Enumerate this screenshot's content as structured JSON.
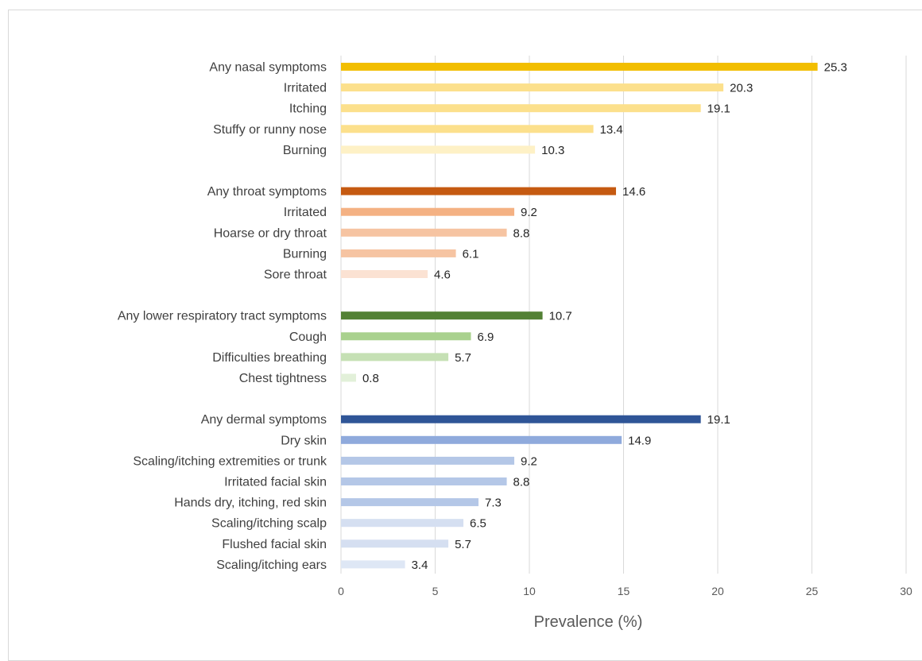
{
  "chart_data": {
    "type": "bar",
    "orientation": "horizontal",
    "title": "",
    "xlabel": "Prevalence (%)",
    "ylabel": "",
    "xlim": [
      0,
      30
    ],
    "xticks": [
      0,
      5,
      10,
      15,
      20,
      25,
      30
    ],
    "grid": "vertical",
    "legend": "none",
    "groups": [
      {
        "items": [
          {
            "label": "Any nasal symptoms",
            "value": 25.3,
            "color": "#F2BE00"
          },
          {
            "label": "Irritated",
            "value": 20.3,
            "color": "#FCE08C"
          },
          {
            "label": "Itching",
            "value": 19.1,
            "color": "#FCE08C"
          },
          {
            "label": "Stuffy or runny nose",
            "value": 13.4,
            "color": "#FCE08C"
          },
          {
            "label": "Burning",
            "value": 10.3,
            "color": "#FEF1C6"
          }
        ]
      },
      {
        "items": [
          {
            "label": "Any throat symptoms",
            "value": 14.6,
            "color": "#C55A11"
          },
          {
            "label": "Irritated",
            "value": 9.2,
            "color": "#F4B183"
          },
          {
            "label": "Hoarse or dry throat",
            "value": 8.8,
            "color": "#F6C4A2"
          },
          {
            "label": "Burning",
            "value": 6.1,
            "color": "#F6C4A2"
          },
          {
            "label": "Sore throat",
            "value": 4.6,
            "color": "#FBE2D3"
          }
        ]
      },
      {
        "items": [
          {
            "label": "Any lower respiratory tract symptoms",
            "value": 10.7,
            "color": "#538135"
          },
          {
            "label": "Cough",
            "value": 6.9,
            "color": "#A9D18E"
          },
          {
            "label": "Difficulties breathing",
            "value": 5.7,
            "color": "#C5E0B4"
          },
          {
            "label": "Chest tightness",
            "value": 0.8,
            "color": "#E2F0D9"
          }
        ]
      },
      {
        "items": [
          {
            "label": "Any dermal symptoms",
            "value": 19.1,
            "color": "#2F5597"
          },
          {
            "label": "Dry skin",
            "value": 14.9,
            "color": "#8FAADC"
          },
          {
            "label": "Scaling/itching extremities or trunk",
            "value": 9.2,
            "color": "#B4C7E7"
          },
          {
            "label": "Irritated facial skin",
            "value": 8.8,
            "color": "#B4C7E7"
          },
          {
            "label": "Hands dry, itching, red skin",
            "value": 7.3,
            "color": "#B4C7E7"
          },
          {
            "label": "Scaling/itching scalp",
            "value": 6.5,
            "color": "#D5DFF1"
          },
          {
            "label": "Flushed facial skin",
            "value": 5.7,
            "color": "#D5DFF1"
          },
          {
            "label": "Scaling/itching ears",
            "value": 3.4,
            "color": "#DEE7F5"
          }
        ]
      }
    ]
  }
}
